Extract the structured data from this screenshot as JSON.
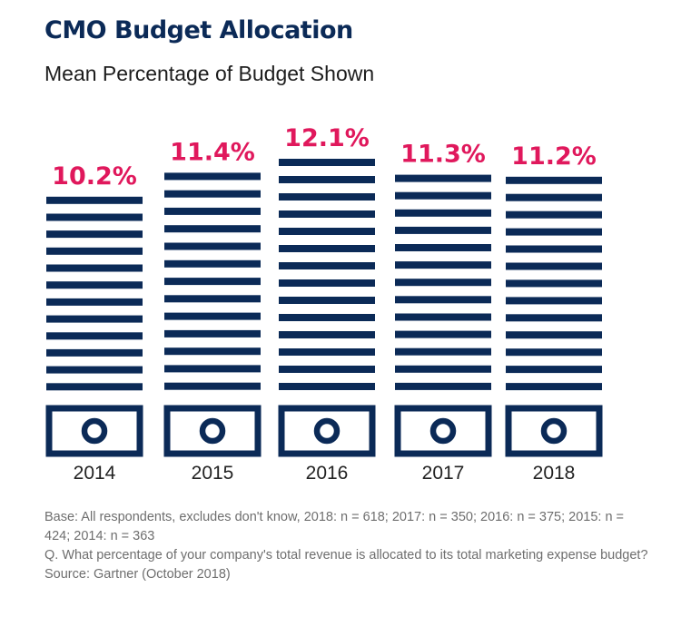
{
  "header": {
    "title": "CMO Budget Allocation",
    "subtitle": "Mean Percentage of Budget Shown"
  },
  "chart_data": {
    "type": "bar",
    "title": "CMO Budget Allocation",
    "subtitle": "Mean Percentage of Budget Shown",
    "categories": [
      "2014",
      "2015",
      "2016",
      "2017",
      "2018"
    ],
    "values": [
      10.2,
      11.4,
      12.1,
      11.3,
      11.2
    ],
    "value_labels": [
      "10.2%",
      "11.4%",
      "12.1%",
      "11.3%",
      "11.2%"
    ],
    "ylim": [
      0,
      12.1
    ],
    "xlabel": "",
    "ylabel": "",
    "bar_color": "#0b2a57",
    "label_color": "#e0185c",
    "grid": false
  },
  "notes": {
    "base": "Base: All respondents, excludes don't know, 2018: n = 618; 2017: n = 350; 2016: n = 375; 2015: n = 424; 2014: n = 363",
    "question": "Q. What percentage of your company's total revenue is allocated to its total marketing expense budget?",
    "source": "Source: Gartner (October 2018)"
  }
}
